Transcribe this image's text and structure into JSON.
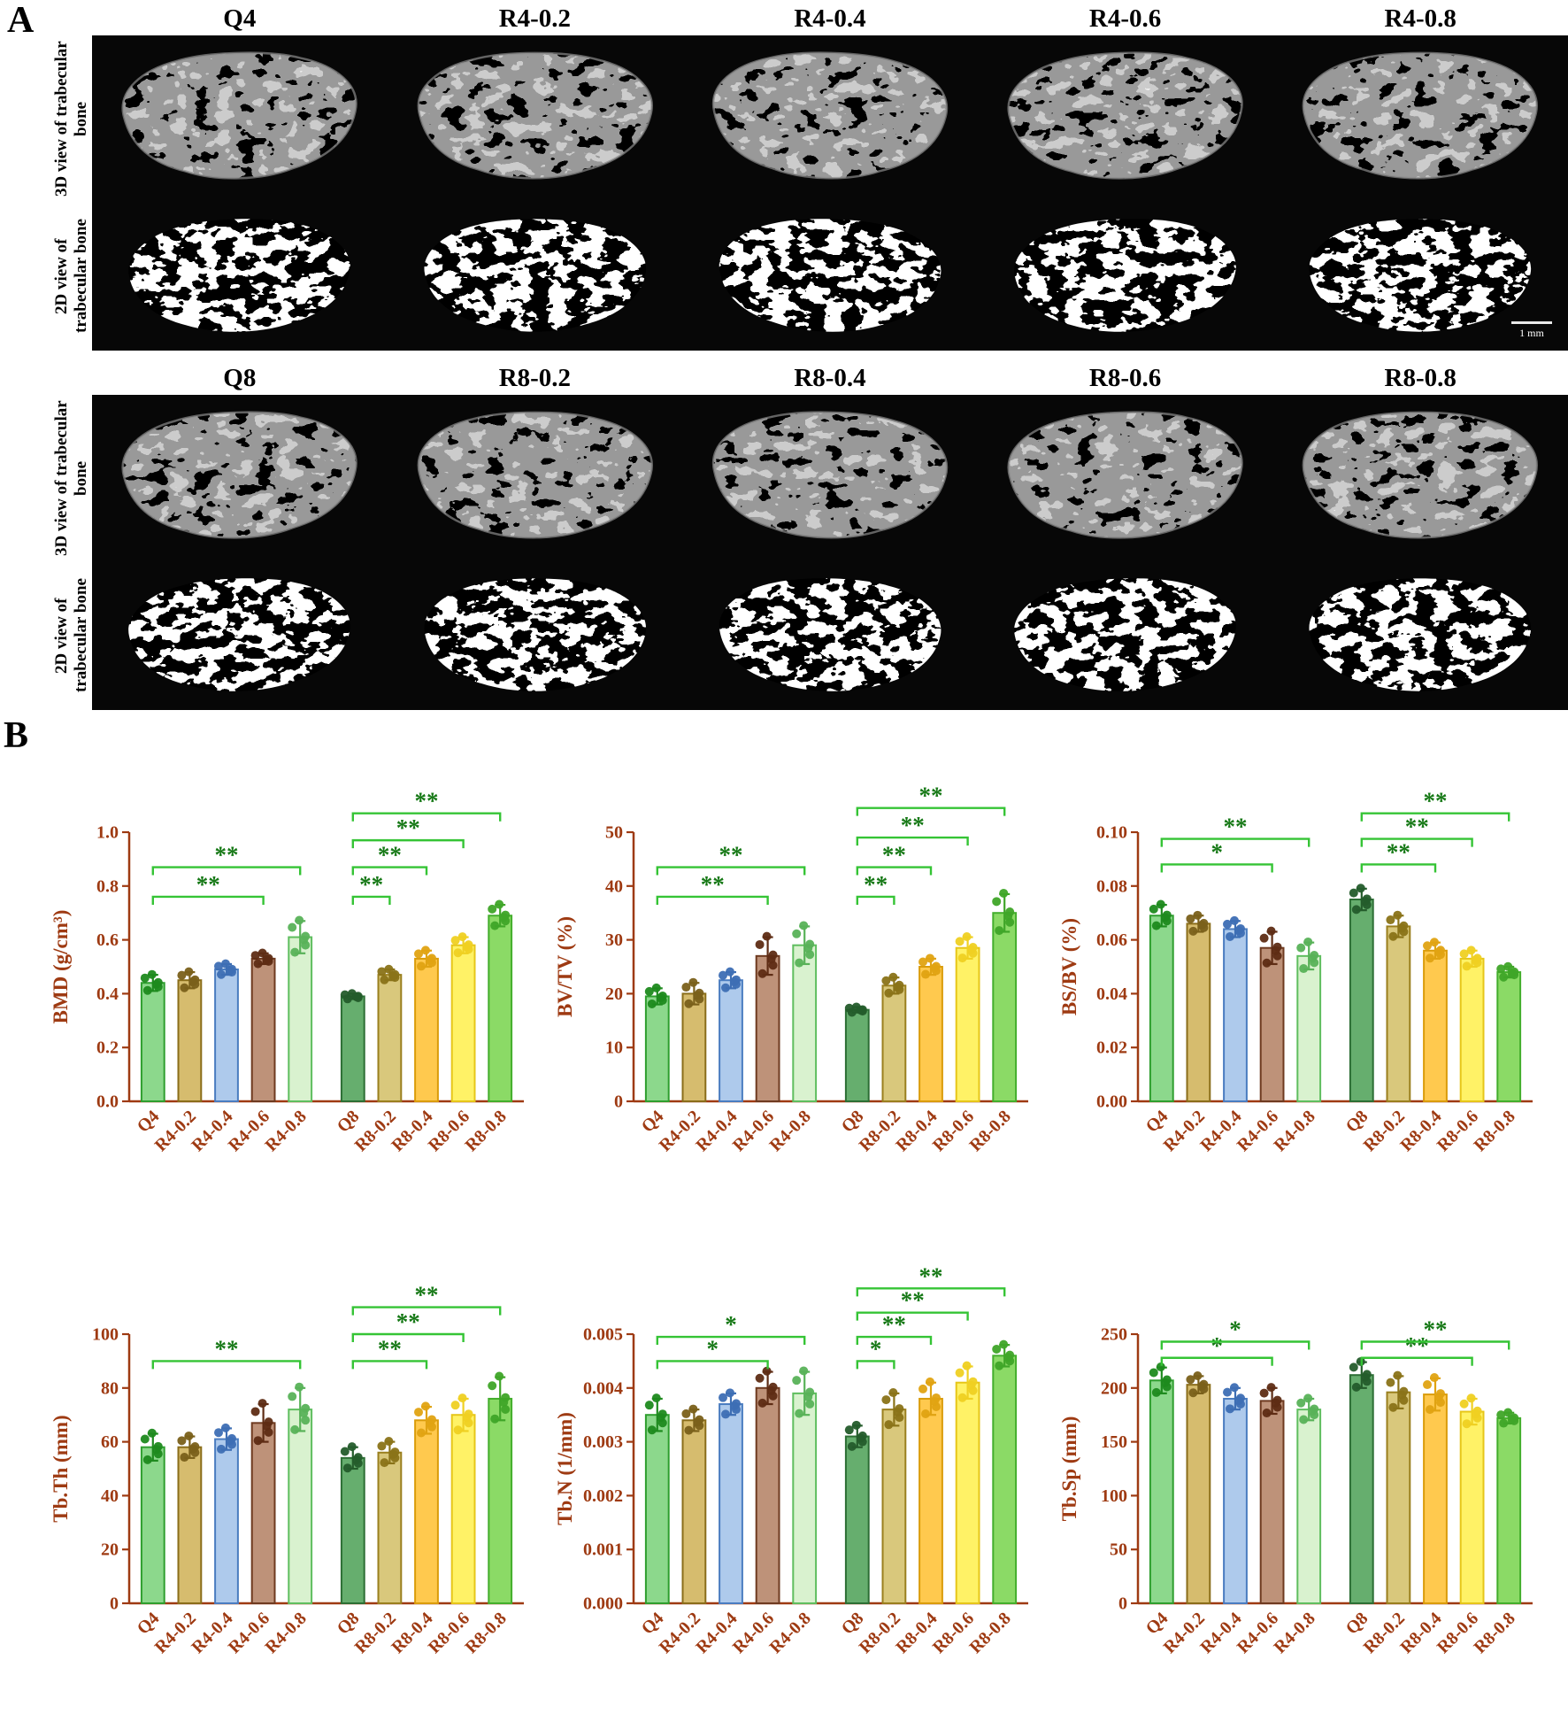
{
  "panel_a": {
    "label": "A",
    "row_labels": [
      "3D view of trabecular bone",
      "2D view of trabecular bone"
    ],
    "scale_bar_label": "1 mm",
    "blocks": [
      {
        "headers": [
          "Q4",
          "R4-0.2",
          "R4-0.4",
          "R4-0.6",
          "R4-0.8"
        ]
      },
      {
        "headers": [
          "Q8",
          "R8-0.2",
          "R8-0.4",
          "R8-0.6",
          "R8-0.8"
        ]
      }
    ]
  },
  "panel_b": {
    "label": "B",
    "categories": [
      "Q4",
      "R4-0.2",
      "R4-0.4",
      "R4-0.6",
      "R4-0.8",
      "Q8",
      "R8-0.2",
      "R8-0.4",
      "R8-0.6",
      "R8-0.8"
    ],
    "colors": {
      "axis": "#9E3A12",
      "bracket": "#35C435",
      "star": "#157815",
      "background": "#ffffff"
    },
    "bar_styles": [
      {
        "fill": "#8CD88C",
        "stroke": "#2E9E2E",
        "dot": "#1E8A1E"
      },
      {
        "fill": "#D6BC6E",
        "stroke": "#8A6D1A",
        "dot": "#7A601A"
      },
      {
        "fill": "#AECAEC",
        "stroke": "#4A7CC0",
        "dot": "#3D6EB4"
      },
      {
        "fill": "#BE9279",
        "stroke": "#6E3A20",
        "dot": "#5E2C14"
      },
      {
        "fill": "#D9F2CF",
        "stroke": "#5FBE5F",
        "dot": "#58B258"
      },
      {
        "fill": "#66AE6E",
        "stroke": "#2C6E34",
        "dot": "#245C2B"
      },
      {
        "fill": "#D9C87C",
        "stroke": "#9A7F1E",
        "dot": "#8A7318"
      },
      {
        "fill": "#FFC94E",
        "stroke": "#DA9C0A",
        "dot": "#E0A312"
      },
      {
        "fill": "#FFF266",
        "stroke": "#E6C619",
        "dot": "#EFD022"
      },
      {
        "fill": "#8BDA66",
        "stroke": "#43AE2C",
        "dot": "#3FA528"
      }
    ]
  },
  "chart_data": [
    {
      "type": "bar",
      "id": "BMD",
      "ylabel": "BMD (g/cm³)",
      "ylim": [
        0,
        1.0
      ],
      "yticks": [
        0,
        0.2,
        0.4,
        0.6,
        0.8,
        1.0
      ],
      "ydecimals": 1,
      "categories": [
        "Q4",
        "R4-0.2",
        "R4-0.4",
        "R4-0.6",
        "R4-0.8",
        "Q8",
        "R8-0.2",
        "R8-0.4",
        "R8-0.6",
        "R8-0.8"
      ],
      "values": [
        0.44,
        0.45,
        0.49,
        0.53,
        0.61,
        0.39,
        0.47,
        0.53,
        0.58,
        0.69
      ],
      "errors": [
        0.03,
        0.03,
        0.02,
        0.02,
        0.06,
        0.01,
        0.02,
        0.03,
        0.03,
        0.04
      ],
      "significance": [
        {
          "from": 0,
          "to": 3,
          "label": "**",
          "y": 0.76
        },
        {
          "from": 0,
          "to": 4,
          "label": "**",
          "y": 0.87
        },
        {
          "from": 5,
          "to": 6,
          "label": "**",
          "y": 0.76
        },
        {
          "from": 5,
          "to": 7,
          "label": "**",
          "y": 0.87
        },
        {
          "from": 5,
          "to": 8,
          "label": "**",
          "y": 0.97
        },
        {
          "from": 5,
          "to": 9,
          "label": "**",
          "y": 1.07
        }
      ]
    },
    {
      "type": "bar",
      "id": "BVTV",
      "ylabel": "BV/TV (%)",
      "ylim": [
        0,
        50
      ],
      "yticks": [
        0,
        10,
        20,
        30,
        40,
        50
      ],
      "ydecimals": 0,
      "categories": [
        "Q4",
        "R4-0.2",
        "R4-0.4",
        "R4-0.6",
        "R4-0.8",
        "Q8",
        "R8-0.2",
        "R8-0.4",
        "R8-0.6",
        "R8-0.8"
      ],
      "values": [
        19.5,
        20,
        22.5,
        27,
        29,
        17,
        21.5,
        25,
        28.5,
        35
      ],
      "errors": [
        1.5,
        2,
        1.5,
        3.5,
        3.5,
        0.5,
        1.5,
        1.5,
        2,
        3.5
      ],
      "significance": [
        {
          "from": 0,
          "to": 3,
          "label": "**",
          "y": 38
        },
        {
          "from": 0,
          "to": 4,
          "label": "**",
          "y": 43.5
        },
        {
          "from": 5,
          "to": 6,
          "label": "**",
          "y": 38
        },
        {
          "from": 5,
          "to": 7,
          "label": "**",
          "y": 43.5
        },
        {
          "from": 5,
          "to": 8,
          "label": "**",
          "y": 49
        },
        {
          "from": 5,
          "to": 9,
          "label": "**",
          "y": 54.5
        }
      ]
    },
    {
      "type": "bar",
      "id": "BSBV",
      "ylabel": "BS/BV (%)",
      "ylim": [
        0,
        0.1
      ],
      "yticks": [
        0,
        0.02,
        0.04,
        0.06,
        0.08,
        0.1
      ],
      "ydecimals": 2,
      "categories": [
        "Q4",
        "R4-0.2",
        "R4-0.4",
        "R4-0.6",
        "R4-0.8",
        "Q8",
        "R8-0.2",
        "R8-0.4",
        "R8-0.6",
        "R8-0.8"
      ],
      "values": [
        0.069,
        0.066,
        0.064,
        0.057,
        0.054,
        0.075,
        0.065,
        0.056,
        0.053,
        0.048
      ],
      "errors": [
        0.004,
        0.003,
        0.003,
        0.006,
        0.005,
        0.004,
        0.004,
        0.003,
        0.003,
        0.002
      ],
      "significance": [
        {
          "from": 0,
          "to": 3,
          "label": "*",
          "y": 0.088
        },
        {
          "from": 0,
          "to": 4,
          "label": "**",
          "y": 0.0975
        },
        {
          "from": 5,
          "to": 7,
          "label": "**",
          "y": 0.088
        },
        {
          "from": 5,
          "to": 8,
          "label": "**",
          "y": 0.0975
        },
        {
          "from": 5,
          "to": 9,
          "label": "**",
          "y": 0.107
        }
      ]
    },
    {
      "type": "bar",
      "id": "TbTh",
      "ylabel": "Tb.Th (mm)",
      "ylim": [
        0,
        100
      ],
      "yticks": [
        0,
        20,
        40,
        60,
        80,
        100
      ],
      "ydecimals": 0,
      "categories": [
        "Q4",
        "R4-0.2",
        "R4-0.4",
        "R4-0.6",
        "R4-0.8",
        "Q8",
        "R8-0.2",
        "R8-0.4",
        "R8-0.6",
        "R8-0.8"
      ],
      "values": [
        58,
        58,
        61,
        67,
        72,
        54,
        56,
        68,
        70,
        76
      ],
      "errors": [
        5,
        4,
        4,
        7,
        8,
        4,
        4,
        5,
        6,
        8
      ],
      "significance": [
        {
          "from": 0,
          "to": 4,
          "label": "**",
          "y": 90
        },
        {
          "from": 5,
          "to": 7,
          "label": "**",
          "y": 90
        },
        {
          "from": 5,
          "to": 8,
          "label": "**",
          "y": 100
        },
        {
          "from": 5,
          "to": 9,
          "label": "**",
          "y": 110
        }
      ]
    },
    {
      "type": "bar",
      "id": "TbN",
      "ylabel": "Tb.N (1/mm)",
      "ylim": [
        0,
        0.005
      ],
      "yticks": [
        0,
        0.001,
        0.002,
        0.003,
        0.004,
        0.005
      ],
      "ydecimals": 3,
      "categories": [
        "Q4",
        "R4-0.2",
        "R4-0.4",
        "R4-0.6",
        "R4-0.8",
        "Q8",
        "R8-0.2",
        "R8-0.4",
        "R8-0.6",
        "R8-0.8"
      ],
      "values": [
        0.0035,
        0.0034,
        0.0037,
        0.004,
        0.0039,
        0.0031,
        0.0036,
        0.0038,
        0.0041,
        0.0046
      ],
      "errors": [
        0.0003,
        0.0002,
        0.0002,
        0.0003,
        0.0004,
        0.0002,
        0.0003,
        0.0003,
        0.0003,
        0.0002
      ],
      "significance": [
        {
          "from": 0,
          "to": 3,
          "label": "*",
          "y": 0.0045
        },
        {
          "from": 0,
          "to": 4,
          "label": "*",
          "y": 0.00495
        },
        {
          "from": 5,
          "to": 6,
          "label": "*",
          "y": 0.0045
        },
        {
          "from": 5,
          "to": 7,
          "label": "**",
          "y": 0.00495
        },
        {
          "from": 5,
          "to": 8,
          "label": "**",
          "y": 0.0054
        },
        {
          "from": 5,
          "to": 9,
          "label": "**",
          "y": 0.00585
        }
      ]
    },
    {
      "type": "bar",
      "id": "TbSp",
      "ylabel": "Tb.Sp (mm)",
      "ylim": [
        0,
        250
      ],
      "yticks": [
        0,
        50,
        100,
        150,
        200,
        250
      ],
      "ydecimals": 0,
      "categories": [
        "Q4",
        "R4-0.2",
        "R4-0.4",
        "R4-0.6",
        "R4-0.8",
        "Q8",
        "R8-0.2",
        "R8-0.4",
        "R8-0.6",
        "R8-0.8"
      ],
      "values": [
        207,
        203,
        190,
        188,
        180,
        212,
        196,
        194,
        178,
        172
      ],
      "errors": [
        12,
        8,
        10,
        12,
        10,
        12,
        15,
        15,
        12,
        5
      ],
      "significance": [
        {
          "from": 0,
          "to": 3,
          "label": "*",
          "y": 228
        },
        {
          "from": 0,
          "to": 4,
          "label": "*",
          "y": 243
        },
        {
          "from": 5,
          "to": 8,
          "label": "**",
          "y": 228
        },
        {
          "from": 5,
          "to": 9,
          "label": "**",
          "y": 243
        }
      ]
    }
  ]
}
